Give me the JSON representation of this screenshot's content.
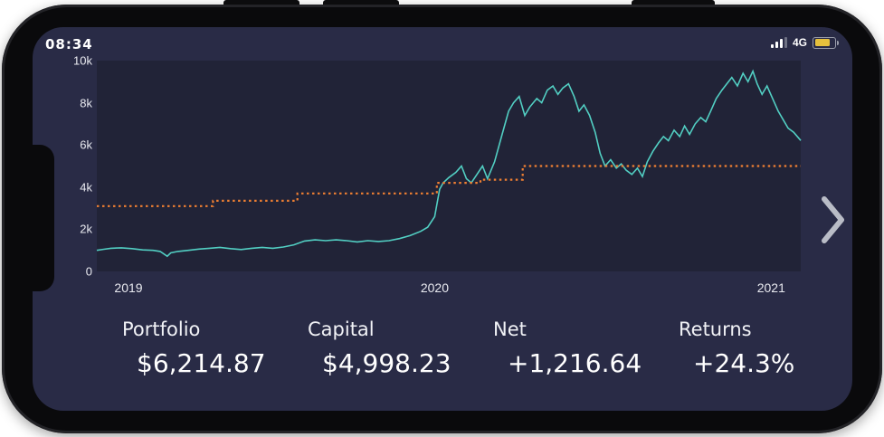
{
  "status_bar": {
    "time": "08:34",
    "network": "4G",
    "battery_color": "#e6c03c"
  },
  "nav": {
    "next_arrow": "chevron-right"
  },
  "stats": [
    {
      "label": "Portfolio",
      "value": "$6,214.87"
    },
    {
      "label": "Capital",
      "value": "$4,998.23"
    },
    {
      "label": "Net",
      "value": "+1,216.64"
    },
    {
      "label": "Returns",
      "value": "+24.3%"
    }
  ],
  "colors": {
    "screen_bg": "#292b46",
    "chart_bg": "#212337",
    "portfolio_line": "#52cfc3",
    "capital_line": "#ef7f32"
  },
  "chart_data": {
    "type": "line",
    "title": "",
    "xlabel": "",
    "ylabel": "",
    "ylim": [
      0,
      10
    ],
    "grid": false,
    "legend": "none",
    "yticks": [
      {
        "label": "0",
        "v": 0
      },
      {
        "label": "2k",
        "v": 2
      },
      {
        "label": "4k",
        "v": 4
      },
      {
        "label": "6k",
        "v": 6
      },
      {
        "label": "8k",
        "v": 8
      },
      {
        "label": "10k",
        "v": 10
      }
    ],
    "xticks": [
      {
        "label": "2019",
        "f": 0.045
      },
      {
        "label": "2020",
        "f": 0.48
      },
      {
        "label": "2021",
        "f": 0.958
      }
    ],
    "series": [
      {
        "name": "portfolio",
        "color": "#52cfc3",
        "style": "solid",
        "step": false,
        "points": [
          [
            0,
            1.0
          ],
          [
            0.01,
            1.05
          ],
          [
            0.02,
            1.1
          ],
          [
            0.035,
            1.12
          ],
          [
            0.05,
            1.08
          ],
          [
            0.065,
            1.02
          ],
          [
            0.08,
            1.0
          ],
          [
            0.09,
            0.95
          ],
          [
            0.1,
            0.72
          ],
          [
            0.105,
            0.88
          ],
          [
            0.115,
            0.95
          ],
          [
            0.13,
            1.0
          ],
          [
            0.145,
            1.06
          ],
          [
            0.16,
            1.1
          ],
          [
            0.175,
            1.14
          ],
          [
            0.19,
            1.08
          ],
          [
            0.205,
            1.04
          ],
          [
            0.22,
            1.1
          ],
          [
            0.235,
            1.14
          ],
          [
            0.25,
            1.1
          ],
          [
            0.265,
            1.16
          ],
          [
            0.28,
            1.26
          ],
          [
            0.295,
            1.44
          ],
          [
            0.31,
            1.5
          ],
          [
            0.325,
            1.46
          ],
          [
            0.34,
            1.5
          ],
          [
            0.355,
            1.46
          ],
          [
            0.37,
            1.4
          ],
          [
            0.385,
            1.46
          ],
          [
            0.4,
            1.42
          ],
          [
            0.415,
            1.46
          ],
          [
            0.43,
            1.56
          ],
          [
            0.445,
            1.7
          ],
          [
            0.46,
            1.9
          ],
          [
            0.47,
            2.1
          ],
          [
            0.48,
            2.6
          ],
          [
            0.487,
            3.9
          ],
          [
            0.492,
            4.2
          ],
          [
            0.5,
            4.45
          ],
          [
            0.51,
            4.7
          ],
          [
            0.518,
            5.0
          ],
          [
            0.525,
            4.4
          ],
          [
            0.532,
            4.2
          ],
          [
            0.54,
            4.6
          ],
          [
            0.548,
            5.0
          ],
          [
            0.555,
            4.4
          ],
          [
            0.565,
            5.2
          ],
          [
            0.575,
            6.4
          ],
          [
            0.585,
            7.6
          ],
          [
            0.592,
            8.0
          ],
          [
            0.6,
            8.3
          ],
          [
            0.608,
            7.4
          ],
          [
            0.615,
            7.8
          ],
          [
            0.625,
            8.2
          ],
          [
            0.632,
            8.0
          ],
          [
            0.64,
            8.6
          ],
          [
            0.648,
            8.8
          ],
          [
            0.655,
            8.4
          ],
          [
            0.662,
            8.7
          ],
          [
            0.67,
            8.9
          ],
          [
            0.678,
            8.3
          ],
          [
            0.685,
            7.6
          ],
          [
            0.692,
            7.9
          ],
          [
            0.7,
            7.4
          ],
          [
            0.708,
            6.6
          ],
          [
            0.715,
            5.6
          ],
          [
            0.722,
            5.0
          ],
          [
            0.73,
            5.3
          ],
          [
            0.738,
            4.9
          ],
          [
            0.745,
            5.1
          ],
          [
            0.752,
            4.8
          ],
          [
            0.76,
            4.6
          ],
          [
            0.768,
            4.9
          ],
          [
            0.775,
            4.5
          ],
          [
            0.782,
            5.2
          ],
          [
            0.79,
            5.7
          ],
          [
            0.798,
            6.1
          ],
          [
            0.805,
            6.4
          ],
          [
            0.812,
            6.2
          ],
          [
            0.82,
            6.7
          ],
          [
            0.828,
            6.4
          ],
          [
            0.835,
            6.9
          ],
          [
            0.842,
            6.5
          ],
          [
            0.85,
            7.0
          ],
          [
            0.858,
            7.3
          ],
          [
            0.865,
            7.1
          ],
          [
            0.872,
            7.6
          ],
          [
            0.88,
            8.2
          ],
          [
            0.888,
            8.6
          ],
          [
            0.895,
            8.9
          ],
          [
            0.902,
            9.2
          ],
          [
            0.91,
            8.8
          ],
          [
            0.918,
            9.4
          ],
          [
            0.925,
            9.0
          ],
          [
            0.932,
            9.5
          ],
          [
            0.938,
            8.9
          ],
          [
            0.945,
            8.4
          ],
          [
            0.952,
            8.8
          ],
          [
            0.96,
            8.2
          ],
          [
            0.968,
            7.6
          ],
          [
            0.975,
            7.2
          ],
          [
            0.982,
            6.8
          ],
          [
            0.99,
            6.6
          ],
          [
            1,
            6.21
          ]
        ]
      },
      {
        "name": "capital",
        "color": "#ef7f32",
        "style": "dotted",
        "step": true,
        "points": [
          [
            0,
            3.1
          ],
          [
            0.165,
            3.35
          ],
          [
            0.285,
            3.7
          ],
          [
            0.483,
            4.2
          ],
          [
            0.545,
            4.35
          ],
          [
            0.605,
            5.0
          ],
          [
            1,
            5.0
          ]
        ]
      }
    ]
  }
}
